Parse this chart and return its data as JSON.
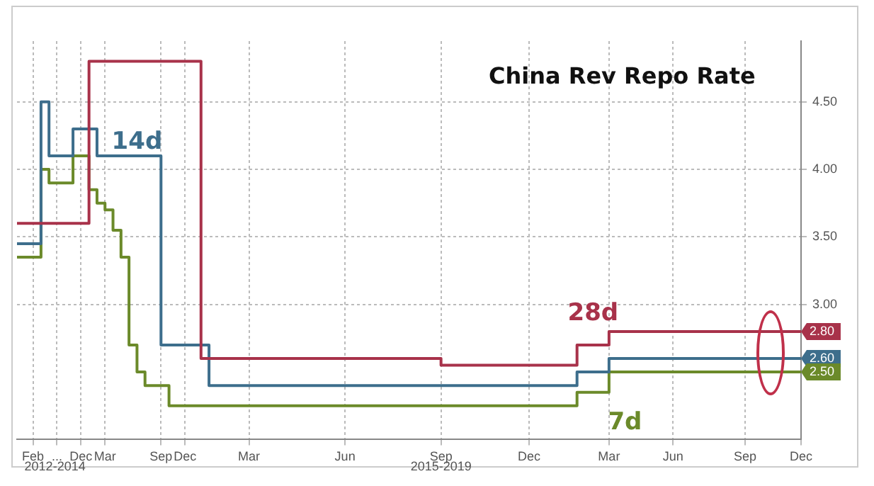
{
  "chart_data": {
    "type": "step",
    "title": "China Rev Repo Rate",
    "categories": [
      null,
      null,
      "Feb",
      null,
      null,
      "...",
      null,
      null,
      "Dec",
      null,
      null,
      "Mar",
      null,
      null,
      null,
      null,
      null,
      null,
      "Sep",
      null,
      null,
      "Dec",
      null,
      null,
      null,
      null,
      null,
      null,
      null,
      "Mar",
      null,
      null,
      null,
      null,
      null,
      null,
      null,
      null,
      null,
      null,
      null,
      "Jun",
      null,
      null,
      null,
      null,
      null,
      null,
      null,
      null,
      null,
      null,
      null,
      "Sep",
      null,
      null,
      null,
      null,
      null,
      null,
      null,
      null,
      null,
      null,
      "Dec",
      null,
      null,
      null,
      null,
      null,
      null,
      null,
      null,
      null,
      "Mar",
      null,
      null,
      null,
      null,
      null,
      null,
      null,
      "Jun",
      null,
      null,
      null,
      null,
      null,
      null,
      null,
      null,
      "Sep",
      null,
      null,
      null,
      null,
      null,
      null,
      "Dec"
    ],
    "ylim": [
      2.0,
      4.95
    ],
    "yticks": [
      {
        "value": 3,
        "label": "3.00"
      },
      {
        "value": 3.5,
        "label": "3.50"
      },
      {
        "value": 4,
        "label": "4.00"
      },
      {
        "value": 4.5,
        "label": "4.50"
      }
    ],
    "annotations": [
      "2012-2014",
      "2015-2019"
    ],
    "grid": true,
    "marker": "none",
    "line_style": "solid",
    "series": [
      {
        "name": "28d",
        "color": "#a8324a",
        "values": [
          3.6,
          3.6,
          3.6,
          3.6,
          3.6,
          3.6,
          3.6,
          3.6,
          3.6,
          4.8,
          4.8,
          4.8,
          4.8,
          4.8,
          4.8,
          4.8,
          4.8,
          4.8,
          4.8,
          4.8,
          4.8,
          4.8,
          4.8,
          2.6,
          2.6,
          2.6,
          2.6,
          2.6,
          2.6,
          2.6,
          2.6,
          2.6,
          2.6,
          2.6,
          2.6,
          2.6,
          2.6,
          2.6,
          2.6,
          2.6,
          2.6,
          2.6,
          2.6,
          2.6,
          2.6,
          2.6,
          2.6,
          2.6,
          2.6,
          2.6,
          2.6,
          2.6,
          2.6,
          2.55,
          2.55,
          2.55,
          2.55,
          2.55,
          2.55,
          2.55,
          2.55,
          2.55,
          2.55,
          2.55,
          2.55,
          2.55,
          2.55,
          2.55,
          2.55,
          2.55,
          2.7,
          2.7,
          2.7,
          2.7,
          2.8,
          2.8,
          2.8,
          2.8,
          2.8,
          2.8,
          2.8,
          2.8,
          2.8,
          2.8,
          2.8,
          2.8,
          2.8,
          2.8,
          2.8,
          2.8,
          2.8,
          2.8,
          2.8,
          2.8,
          2.8,
          2.8,
          2.8,
          2.8,
          2.8
        ],
        "value_labels": [
          null,
          null,
          null,
          null,
          null,
          null,
          null,
          null,
          null,
          null,
          null,
          null,
          null,
          null,
          null,
          null,
          null,
          null,
          null,
          null,
          null,
          null,
          null,
          null,
          null,
          null,
          null,
          null,
          null,
          null,
          null,
          null,
          null,
          null,
          null,
          null,
          null,
          null,
          null,
          null,
          null,
          null,
          null,
          null,
          null,
          null,
          null,
          null,
          null,
          null,
          null,
          null,
          null,
          null,
          null,
          null,
          null,
          null,
          null,
          null,
          null,
          null,
          null,
          null,
          null,
          null,
          null,
          null,
          null,
          null,
          null,
          null,
          null,
          null,
          null,
          null,
          null,
          null,
          null,
          null,
          null,
          null,
          null,
          null,
          null,
          null,
          null,
          null,
          null,
          null,
          null,
          null,
          null,
          null,
          null,
          null,
          null,
          null,
          "2.80"
        ]
      },
      {
        "name": "14d",
        "color": "#3d6e8c",
        "values": [
          3.45,
          3.45,
          3.45,
          4.5,
          4.1,
          4.1,
          4.1,
          4.3,
          4.3,
          4.3,
          4.1,
          4.1,
          4.1,
          4.1,
          4.1,
          4.1,
          4.1,
          4.1,
          2.7,
          2.7,
          2.7,
          2.7,
          2.7,
          2.7,
          2.4,
          2.4,
          2.4,
          2.4,
          2.4,
          2.4,
          2.4,
          2.4,
          2.4,
          2.4,
          2.4,
          2.4,
          2.4,
          2.4,
          2.4,
          2.4,
          2.4,
          2.4,
          2.4,
          2.4,
          2.4,
          2.4,
          2.4,
          2.4,
          2.4,
          2.4,
          2.4,
          2.4,
          2.4,
          2.4,
          2.4,
          2.4,
          2.4,
          2.4,
          2.4,
          2.4,
          2.4,
          2.4,
          2.4,
          2.4,
          2.4,
          2.4,
          2.4,
          2.4,
          2.4,
          2.4,
          2.5,
          2.5,
          2.5,
          2.5,
          2.6,
          2.6,
          2.6,
          2.6,
          2.6,
          2.6,
          2.6,
          2.6,
          2.6,
          2.6,
          2.6,
          2.6,
          2.6,
          2.6,
          2.6,
          2.6,
          2.6,
          2.6,
          2.6,
          2.6,
          2.6,
          2.6,
          2.6,
          2.6,
          2.6
        ],
        "value_labels": [
          null,
          null,
          null,
          null,
          null,
          null,
          null,
          null,
          null,
          null,
          null,
          null,
          null,
          null,
          null,
          null,
          null,
          null,
          null,
          null,
          null,
          null,
          null,
          null,
          null,
          null,
          null,
          null,
          null,
          null,
          null,
          null,
          null,
          null,
          null,
          null,
          null,
          null,
          null,
          null,
          null,
          null,
          null,
          null,
          null,
          null,
          null,
          null,
          null,
          null,
          null,
          null,
          null,
          null,
          null,
          null,
          null,
          null,
          null,
          null,
          null,
          null,
          null,
          null,
          null,
          null,
          null,
          null,
          null,
          null,
          null,
          null,
          null,
          null,
          null,
          null,
          null,
          null,
          null,
          null,
          null,
          null,
          null,
          null,
          null,
          null,
          null,
          null,
          null,
          null,
          null,
          null,
          null,
          null,
          null,
          null,
          null,
          null,
          "2.60"
        ]
      },
      {
        "name": "7d",
        "color": "#6b8a2a",
        "values": [
          3.35,
          3.35,
          3.35,
          4.0,
          3.9,
          3.9,
          3.9,
          4.1,
          4.1,
          3.85,
          3.75,
          3.7,
          3.55,
          3.35,
          2.7,
          2.5,
          2.4,
          2.4,
          2.4,
          2.25,
          2.25,
          2.25,
          2.25,
          2.25,
          2.25,
          2.25,
          2.25,
          2.25,
          2.25,
          2.25,
          2.25,
          2.25,
          2.25,
          2.25,
          2.25,
          2.25,
          2.25,
          2.25,
          2.25,
          2.25,
          2.25,
          2.25,
          2.25,
          2.25,
          2.25,
          2.25,
          2.25,
          2.25,
          2.25,
          2.25,
          2.25,
          2.25,
          2.25,
          2.25,
          2.25,
          2.25,
          2.25,
          2.25,
          2.25,
          2.25,
          2.25,
          2.25,
          2.25,
          2.25,
          2.25,
          2.25,
          2.25,
          2.25,
          2.25,
          2.25,
          2.35,
          2.35,
          2.35,
          2.35,
          2.5,
          2.5,
          2.5,
          2.5,
          2.5,
          2.5,
          2.5,
          2.5,
          2.5,
          2.5,
          2.5,
          2.5,
          2.5,
          2.5,
          2.5,
          2.5,
          2.5,
          2.5,
          2.5,
          2.5,
          2.5,
          2.5,
          2.5,
          2.5,
          2.5
        ],
        "value_labels": [
          null,
          null,
          null,
          null,
          null,
          null,
          null,
          null,
          null,
          null,
          null,
          null,
          null,
          null,
          null,
          null,
          null,
          null,
          null,
          null,
          null,
          null,
          null,
          null,
          null,
          null,
          null,
          null,
          null,
          null,
          null,
          null,
          null,
          null,
          null,
          null,
          null,
          null,
          null,
          null,
          null,
          null,
          null,
          null,
          null,
          null,
          null,
          null,
          null,
          null,
          null,
          null,
          null,
          null,
          null,
          null,
          null,
          null,
          null,
          null,
          null,
          null,
          null,
          null,
          null,
          null,
          null,
          null,
          null,
          null,
          null,
          null,
          null,
          null,
          null,
          null,
          null,
          null,
          null,
          null,
          null,
          null,
          null,
          null,
          null,
          null,
          null,
          null,
          null,
          null,
          null,
          null,
          null,
          null,
          null,
          null,
          null,
          null,
          "2.50"
        ]
      }
    ]
  }
}
